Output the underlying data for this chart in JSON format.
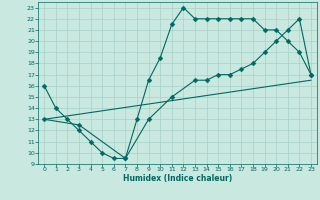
{
  "xlabel": "Humidex (Indice chaleur)",
  "background_color": "#c8e8e0",
  "grid_color": "#a8d0c8",
  "line_color": "#006860",
  "xlim": [
    -0.5,
    23.5
  ],
  "ylim": [
    9,
    23.5
  ],
  "yticks": [
    9,
    10,
    11,
    12,
    13,
    14,
    15,
    16,
    17,
    18,
    19,
    20,
    21,
    22,
    23
  ],
  "xticks": [
    0,
    1,
    2,
    3,
    4,
    5,
    6,
    7,
    8,
    9,
    10,
    11,
    12,
    13,
    14,
    15,
    16,
    17,
    18,
    19,
    20,
    21,
    22,
    23
  ],
  "line1_x": [
    0,
    1,
    2,
    3,
    4,
    5,
    6,
    7,
    8,
    9,
    10,
    11,
    12,
    13,
    14,
    15,
    16,
    17,
    18,
    19,
    20,
    21,
    22,
    23
  ],
  "line1_y": [
    16,
    14,
    13,
    12,
    11,
    10,
    9.5,
    9.5,
    13,
    16.5,
    18.5,
    21.5,
    23,
    22,
    22,
    22,
    22,
    22,
    22,
    21,
    21,
    20,
    19,
    17
  ],
  "line2_x": [
    0,
    3,
    7,
    9,
    11,
    13,
    14,
    15,
    16,
    17,
    18,
    19,
    20,
    21,
    22,
    23
  ],
  "line2_y": [
    13,
    12.5,
    9.5,
    13,
    15,
    16.5,
    16.5,
    17,
    17,
    17.5,
    18,
    19,
    20,
    21,
    22,
    17
  ],
  "line3_x": [
    0,
    23
  ],
  "line3_y": [
    13,
    16.5
  ],
  "markersize": 2.5
}
